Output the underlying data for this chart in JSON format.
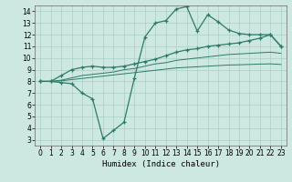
{
  "xlabel": "Humidex (Indice chaleur)",
  "bg_color": "#cce8e0",
  "line_color": "#2d7a6a",
  "grid_color": "#aacfc7",
  "x_ticks": [
    0,
    1,
    2,
    3,
    4,
    5,
    6,
    7,
    8,
    9,
    10,
    11,
    12,
    13,
    14,
    15,
    16,
    17,
    18,
    19,
    20,
    21,
    22,
    23
  ],
  "y_ticks": [
    3,
    4,
    5,
    6,
    7,
    8,
    9,
    10,
    11,
    12,
    13,
    14
  ],
  "xlim": [
    -0.5,
    23.5
  ],
  "ylim": [
    2.5,
    14.5
  ],
  "line1_x": [
    0,
    1,
    2,
    3,
    4,
    5,
    6,
    7,
    8,
    9,
    10,
    11,
    12,
    13,
    14,
    15,
    16,
    17,
    18,
    19,
    20,
    21,
    22,
    23
  ],
  "line1_y": [
    8,
    8,
    7.9,
    7.8,
    7.0,
    6.5,
    3.1,
    3.8,
    4.5,
    8.3,
    11.8,
    13.0,
    13.2,
    14.2,
    14.4,
    12.3,
    13.7,
    13.1,
    12.4,
    12.1,
    12,
    12,
    12,
    11
  ],
  "line2_x": [
    0,
    1,
    2,
    3,
    4,
    5,
    6,
    7,
    8,
    9,
    10,
    11,
    12,
    13,
    14,
    15,
    16,
    17,
    18,
    19,
    20,
    21,
    22,
    23
  ],
  "line2_y": [
    8.0,
    8.0,
    8.5,
    9.0,
    9.2,
    9.3,
    9.2,
    9.2,
    9.3,
    9.5,
    9.7,
    9.9,
    10.2,
    10.5,
    10.7,
    10.8,
    11.0,
    11.1,
    11.2,
    11.3,
    11.5,
    11.7,
    12.0,
    11.0
  ],
  "line3_x": [
    0,
    1,
    2,
    3,
    4,
    5,
    6,
    7,
    8,
    9,
    10,
    11,
    12,
    13,
    14,
    15,
    16,
    17,
    18,
    19,
    20,
    21,
    22,
    23
  ],
  "line3_y": [
    8.0,
    8.0,
    8.1,
    8.3,
    8.5,
    8.6,
    8.7,
    8.8,
    9.0,
    9.1,
    9.3,
    9.5,
    9.6,
    9.8,
    9.9,
    10.0,
    10.1,
    10.2,
    10.3,
    10.35,
    10.4,
    10.45,
    10.5,
    10.4
  ],
  "line4_x": [
    0,
    1,
    2,
    3,
    4,
    5,
    6,
    7,
    8,
    9,
    10,
    11,
    12,
    13,
    14,
    15,
    16,
    17,
    18,
    19,
    20,
    21,
    22,
    23
  ],
  "line4_y": [
    8.0,
    8.0,
    8.05,
    8.15,
    8.25,
    8.35,
    8.45,
    8.55,
    8.65,
    8.75,
    8.85,
    8.95,
    9.05,
    9.15,
    9.2,
    9.25,
    9.3,
    9.35,
    9.4,
    9.42,
    9.45,
    9.48,
    9.5,
    9.45
  ]
}
